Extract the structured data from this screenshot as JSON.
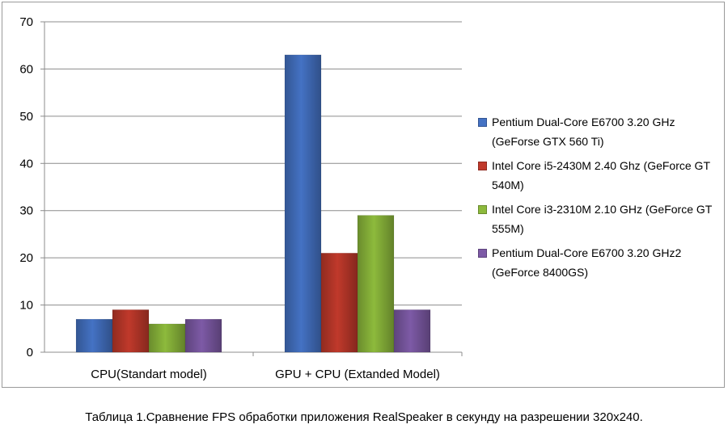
{
  "chart_data": {
    "type": "bar",
    "categories": [
      "CPU(Standart model)",
      "GPU + CPU (Extanded Model)"
    ],
    "series": [
      {
        "name": "Pentium Dual-Core E6700 3.20 GHz (GeForse GTX 560 Ti)",
        "values": [
          7,
          63
        ],
        "color": "#4472c4"
      },
      {
        "name": "Intel Core i5-2430M 2.40 Ghz (GeForce GT 540M)",
        "values": [
          9,
          21
        ],
        "color": "#c0392b"
      },
      {
        "name": "Intel Core i3-2310M 2.10 GHz (GeForce GT 555M)",
        "values": [
          6,
          29
        ],
        "color": "#8dba3c"
      },
      {
        "name": "Pentium Dual-Core E6700 3.20 GHz2 (GeForce 8400GS)",
        "values": [
          7,
          9
        ],
        "color": "#7d5aa6"
      }
    ],
    "ylim": [
      0,
      70
    ],
    "yticks": [
      "0",
      "10",
      "20",
      "30",
      "40",
      "50",
      "60",
      "70"
    ],
    "grid": true,
    "legend_position": "right"
  },
  "caption": "Таблица 1.Сравнение FPS обработки приложения RealSpeaker в секунду на разрешении 320x240."
}
